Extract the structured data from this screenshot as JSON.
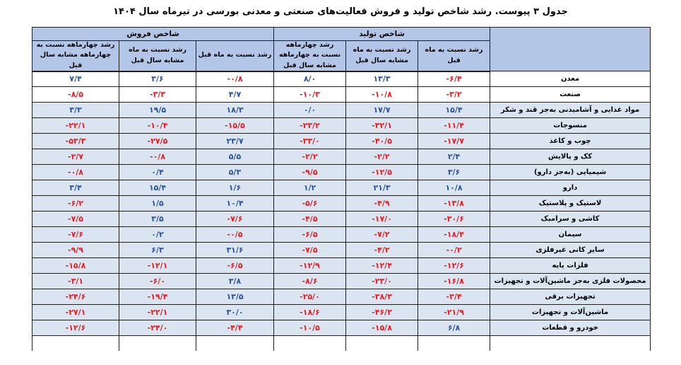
{
  "title": "جدول ۳ پیوست. رشد شاخص تولید و فروش فعالیت‌های صنعتی و معدنی بورسی در تیرماه سال ۱۴۰۴",
  "colors": {
    "negative": "#e01f26",
    "positive": "#2e5496",
    "header_bg": "#b4c6e7",
    "corner_bg": "#8eaadb",
    "row_tint_bg": "#dbe5f1",
    "row_aggregate_bg": "#ffffff",
    "border": "#1f1f1f"
  },
  "table": {
    "corner_label": "",
    "groups": [
      {
        "label": "شاخص تولید",
        "columns": [
          "رشد نسبت به ماه قبل",
          "رشد نسبت به ماه مشابه سال قبل",
          "رشد چهارماهه نسبت به چهارماهه مشابه سال قبل"
        ]
      },
      {
        "label": "شاخص فروش",
        "columns": [
          "رشد نسبت به ماه قبل",
          "رشد نسبت به ماه مشابه سال قبل",
          "رشد چهارماهه نسبت به چهارماهه مشابه سال قبل"
        ]
      }
    ],
    "rows": [
      {
        "label": "معدن",
        "emphasis": true,
        "production": {
          "prev_month": "-۶/۴",
          "same_month_last_year": "۱۳/۳",
          "four_month": "۸/۰"
        },
        "sales": {
          "prev_month": "-۰/۸",
          "same_month_last_year": "۳/۶",
          "four_month": "۷/۴"
        }
      },
      {
        "label": "صنعت",
        "emphasis": true,
        "production": {
          "prev_month": "-۳/۲",
          "same_month_last_year": "-۱۰/۸",
          "four_month": "-۱۰/۳"
        },
        "sales": {
          "prev_month": "۴/۷",
          "same_month_last_year": "-۳/۳",
          "four_month": "-۸/۵"
        }
      },
      {
        "label": "مواد غذایی و آشامیدنی به‌جز قند و شکر",
        "emphasis": false,
        "production": {
          "prev_month": "۱۵/۴",
          "same_month_last_year": "۱۷/۷",
          "four_month": "۰/۰"
        },
        "sales": {
          "prev_month": "۱۸/۳",
          "same_month_last_year": "۱۹/۵",
          "four_month": "۳/۳"
        }
      },
      {
        "label": "منسوجات",
        "emphasis": false,
        "production": {
          "prev_month": "-۱۱/۴",
          "same_month_last_year": "-۳۲/۱",
          "four_month": "-۲۳/۲"
        },
        "sales": {
          "prev_month": "-۱۵/۵",
          "same_month_last_year": "-۱۰/۴",
          "four_month": "-۲۲/۱"
        }
      },
      {
        "label": "چوب و کاغذ",
        "emphasis": false,
        "production": {
          "prev_month": "-۱۷/۷",
          "same_month_last_year": "-۴۰/۵",
          "four_month": "-۳۳/۰"
        },
        "sales": {
          "prev_month": "۲۳/۷",
          "same_month_last_year": "-۲۷/۵",
          "four_month": "-۵۳/۳"
        }
      },
      {
        "label": "کک و پالایش",
        "emphasis": false,
        "production": {
          "prev_month": "۲/۴",
          "same_month_last_year": "-۲/۲",
          "four_month": "-۲/۲"
        },
        "sales": {
          "prev_month": "۵/۵",
          "same_month_last_year": "-۰/۸",
          "four_month": "-۲/۷"
        }
      },
      {
        "label": "شیمیایی (به‌جز دارو)",
        "emphasis": false,
        "production": {
          "prev_month": "۳/۶",
          "same_month_last_year": "-۱۲/۵",
          "four_month": "-۹/۵"
        },
        "sales": {
          "prev_month": "۵/۳",
          "same_month_last_year": "۰/۴",
          "four_month": "-۰/۸"
        }
      },
      {
        "label": "دارو",
        "emphasis": false,
        "production": {
          "prev_month": "۱۰/۸",
          "same_month_last_year": "۲۱/۳",
          "four_month": "۱/۲"
        },
        "sales": {
          "prev_month": "۱/۶",
          "same_month_last_year": "۱۵/۴",
          "four_month": "۳/۴"
        }
      },
      {
        "label": "لاستیک و پلاستیک",
        "emphasis": false,
        "production": {
          "prev_month": "-۱۳/۸",
          "same_month_last_year": "-۴/۹",
          "four_month": "-۵/۶"
        },
        "sales": {
          "prev_month": "۱۰/۴",
          "same_month_last_year": "۱/۵",
          "four_month": "-۶/۲"
        }
      },
      {
        "label": "کاشی و سرامیک",
        "emphasis": false,
        "production": {
          "prev_month": "-۳۰/۶",
          "same_month_last_year": "-۱۷/۰",
          "four_month": "-۴/۵"
        },
        "sales": {
          "prev_month": "-۷/۶",
          "same_month_last_year": "۳/۵",
          "four_month": "-۷/۵"
        }
      },
      {
        "label": "سیمان",
        "emphasis": false,
        "production": {
          "prev_month": "-۱۸/۴",
          "same_month_last_year": "-۷/۲",
          "four_month": "-۶/۵"
        },
        "sales": {
          "prev_month": "-۰/۵",
          "same_month_last_year": "۰/۲",
          "four_month": "-۷/۶"
        }
      },
      {
        "label": "سایر کانی غیرفلزی",
        "emphasis": false,
        "production": {
          "prev_month": "-۰/۲",
          "same_month_last_year": "-۴/۲",
          "four_month": "-۷/۵"
        },
        "sales": {
          "prev_month": "۳۱/۶",
          "same_month_last_year": "۶/۳",
          "four_month": "-۹/۹"
        }
      },
      {
        "label": "فلزات پایه",
        "emphasis": false,
        "production": {
          "prev_month": "-۱۲/۶",
          "same_month_last_year": "-۱۲/۴",
          "four_month": "-۱۲/۹"
        },
        "sales": {
          "prev_month": "-۶/۵",
          "same_month_last_year": "-۱۲/۱",
          "four_month": "-۱۵/۸"
        }
      },
      {
        "label": "محصولات فلزی به‌جز ماشین‌آلات و تجهیزات",
        "emphasis": false,
        "production": {
          "prev_month": "-۱۶/۸",
          "same_month_last_year": "-۲۳/۰",
          "four_month": "-۸/۶"
        },
        "sales": {
          "prev_month": "۳/۸",
          "same_month_last_year": "-۶/۰",
          "four_month": "-۳/۱"
        }
      },
      {
        "label": "تجهیزات برقی",
        "emphasis": false,
        "production": {
          "prev_month": "-۳/۴",
          "same_month_last_year": "-۳۸/۳",
          "four_month": "-۲۵/۰"
        },
        "sales": {
          "prev_month": "۱۳/۵",
          "same_month_last_year": "-۱۹/۴",
          "four_month": "-۲۴/۶"
        }
      },
      {
        "label": "ماشین‌آلات و تجهیزات",
        "emphasis": false,
        "production": {
          "prev_month": "-۲۱/۹",
          "same_month_last_year": "-۴۶/۳",
          "four_month": "-۱۸/۶"
        },
        "sales": {
          "prev_month": "۳۰/۰",
          "same_month_last_year": "-۲۲/۱",
          "four_month": "-۲۷/۱"
        }
      },
      {
        "label": "خودرو و قطعات",
        "emphasis": false,
        "production": {
          "prev_month": "۶/۸",
          "same_month_last_year": "-۱۵/۸",
          "four_month": "-۱۰/۵"
        },
        "sales": {
          "prev_month": "-۴/۴",
          "same_month_last_year": "-۲۴/۰",
          "four_month": "-۱۲/۶"
        }
      }
    ]
  }
}
